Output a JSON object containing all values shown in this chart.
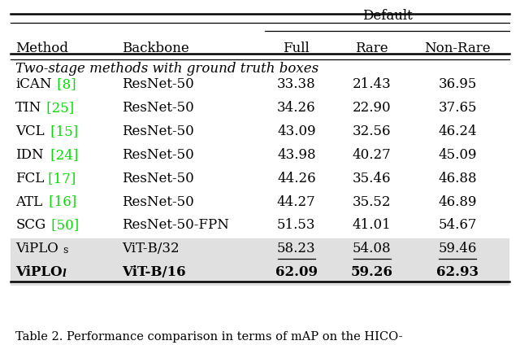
{
  "title": "Default",
  "caption": "Table 2. Performance comparison in terms of mAP on the HICO-",
  "col_headers": [
    "Method",
    "Backbone",
    "Full",
    "Rare",
    "Non-Rare"
  ],
  "group_label": "Two-stage methods with ground truth boxes",
  "rows": [
    {
      "method": "iCAN",
      "ref": "[8]",
      "backbone": "ResNet-50",
      "full": "33.38",
      "rare": "21.43",
      "nonrare": "36.95",
      "highlight": false,
      "underline": false,
      "bold": false
    },
    {
      "method": "TIN",
      "ref": "[25]",
      "backbone": "ResNet-50",
      "full": "34.26",
      "rare": "22.90",
      "nonrare": "37.65",
      "highlight": false,
      "underline": false,
      "bold": false
    },
    {
      "method": "VCL",
      "ref": "[15]",
      "backbone": "ResNet-50",
      "full": "43.09",
      "rare": "32.56",
      "nonrare": "46.24",
      "highlight": false,
      "underline": false,
      "bold": false
    },
    {
      "method": "IDN",
      "ref": "[24]",
      "backbone": "ResNet-50",
      "full": "43.98",
      "rare": "40.27",
      "nonrare": "45.09",
      "highlight": false,
      "underline": false,
      "bold": false
    },
    {
      "method": "FCL",
      "ref": "[17]",
      "backbone": "ResNet-50",
      "full": "44.26",
      "rare": "35.46",
      "nonrare": "46.88",
      "highlight": false,
      "underline": false,
      "bold": false
    },
    {
      "method": "ATL",
      "ref": "[16]",
      "backbone": "ResNet-50",
      "full": "44.27",
      "rare": "35.52",
      "nonrare": "46.89",
      "highlight": false,
      "underline": false,
      "bold": false
    },
    {
      "method": "SCG",
      "ref": "[50]",
      "backbone": "ResNet-50-FPN",
      "full": "51.53",
      "rare": "41.01",
      "nonrare": "54.67",
      "highlight": false,
      "underline": false,
      "bold": false
    },
    {
      "method": "ViPLOs",
      "ref": "",
      "backbone": "ViT-B/32",
      "full": "58.23",
      "rare": "54.08",
      "nonrare": "59.46",
      "highlight": true,
      "underline": true,
      "bold": false
    },
    {
      "method": "ViPLOl",
      "ref": "",
      "backbone": "ViT-B/16",
      "full": "62.09",
      "rare": "59.26",
      "nonrare": "62.93",
      "highlight": true,
      "underline": false,
      "bold": true
    }
  ],
  "ref_color": "#00dd00",
  "highlight_bg": "#e0e0e0",
  "bg_color": "#ffffff",
  "text_color": "#000000",
  "font_size": 12,
  "small_font_size": 9,
  "caption_font_size": 10.5
}
